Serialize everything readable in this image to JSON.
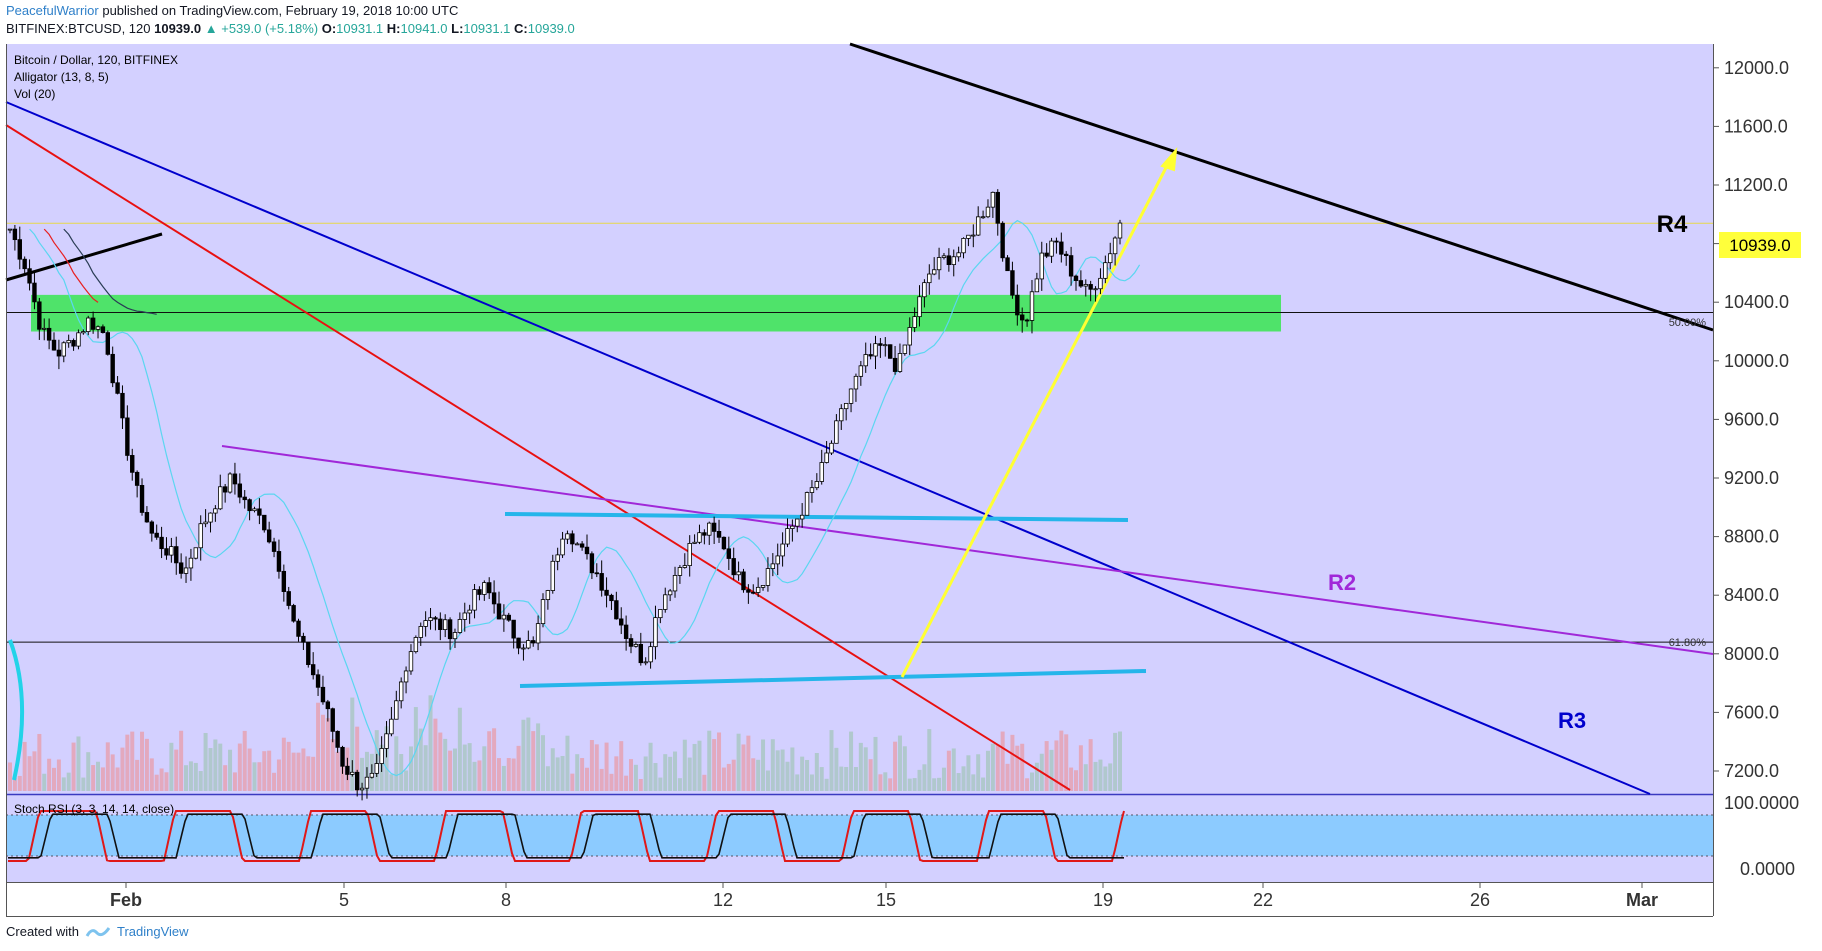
{
  "header": {
    "author": "PeacefulWarrior",
    "published": "published on TradingView.com, February 19, 2018 10:00 UTC",
    "symbol": "BITFINEX:BTCUSD, 120",
    "last": "10939.0",
    "change": "+539.0 (+5.18%)",
    "o_label": "O:",
    "o": "10931.1",
    "h_label": "H:",
    "h": "10941.0",
    "l_label": "L:",
    "l": "10931.1",
    "c_label": "C:",
    "c": "10939.0"
  },
  "legend": {
    "title": "Bitcoin / Dollar, 120, BITFINEX",
    "alligator": "Alligator (13, 8, 5)",
    "vol": "Vol (20)"
  },
  "stoch_label": "Stoch RSI (3, 3, 14, 14, close)",
  "footer": {
    "created": "Created with",
    "brand": "TradingView"
  },
  "colors": {
    "background": "#d3d0ff",
    "support_zone": "#4fe36a",
    "resistance_black": "#000000",
    "trend_blue": "#0000cc",
    "trend_red": "#e81010",
    "trend_purple": "#a028d8",
    "channel_cyan": "#25b5ea",
    "projection_yellow": "#ffff33",
    "price_tag": "#ffff3b",
    "candle_up": "#ffffff",
    "candle_down": "#000000"
  },
  "chart_data": {
    "type": "candlestick",
    "ylim": [
      7040,
      12380
    ],
    "y_ticks": [
      "12000.0",
      "11600.0",
      "11200.0",
      "10800.0",
      "10400.0",
      "10000.0",
      "9600.0",
      "9200.0",
      "8800.0",
      "8400.0",
      "8000.0",
      "7600.0",
      "7200.0"
    ],
    "x_ticks": [
      "Feb",
      "5",
      "8",
      "12",
      "15",
      "19",
      "22",
      "26",
      "Mar"
    ],
    "current_price": "10939.0",
    "fib_levels": [
      {
        "label": "50.00%",
        "value": 10330
      },
      {
        "label": "61.80%",
        "value": 8080
      }
    ],
    "annotations": [
      "R4",
      "R2",
      "R3"
    ],
    "support_zone": [
      10200,
      10450
    ],
    "stoch_rsi_ticks": [
      "100.0000",
      "0.0000"
    ],
    "close_path": [
      10900,
      10640,
      10200,
      10050,
      10150,
      10280,
      10180,
      9600,
      9100,
      8800,
      8700,
      8550,
      8850,
      9050,
      9200,
      9000,
      8900,
      8600,
      8150,
      7900,
      7600,
      7250,
      7100,
      7150,
      7500,
      7950,
      8250,
      8200,
      8150,
      8350,
      8450,
      8250,
      8100,
      8050,
      8500,
      8900,
      8700,
      8550,
      8350,
      8100,
      7950,
      8350,
      8550,
      8750,
      8850,
      8750,
      8500,
      8450,
      8600,
      8800,
      9000,
      9200,
      9500,
      9800,
      10000,
      10100,
      9950,
      10300,
      10600,
      10700,
      10750,
      10950,
      11150,
      10500,
      10250,
      10700,
      10800,
      10600,
      10450,
      10650,
      10939
    ]
  }
}
